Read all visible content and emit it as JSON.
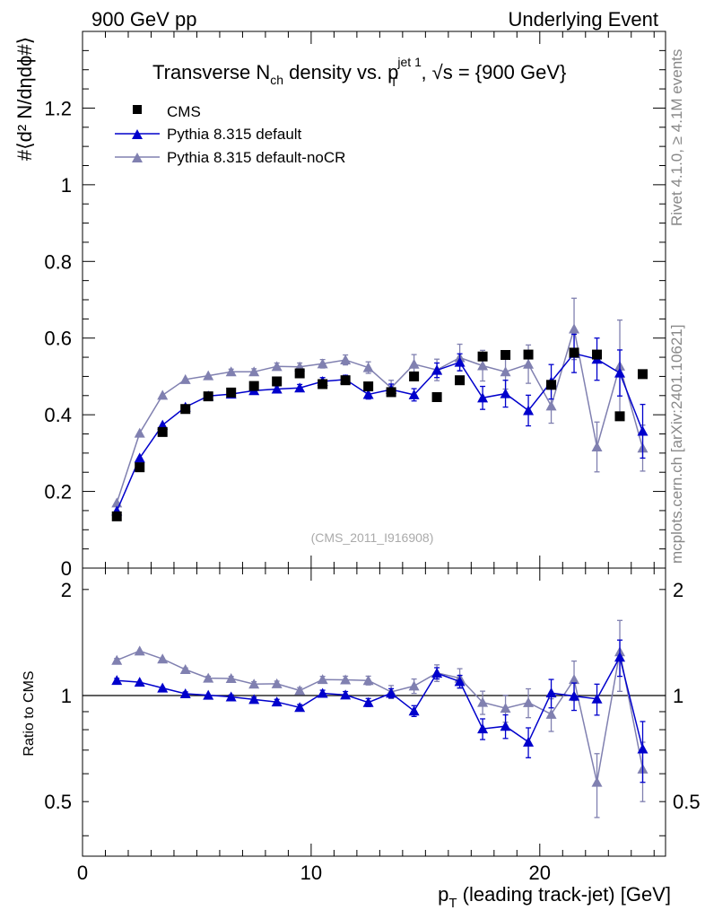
{
  "header": {
    "left": "900 GeV pp",
    "right": "Underlying Event"
  },
  "side_text": {
    "rivet": "Rivet 4.1.0, ≥ 4.1M events",
    "mcplots": "mcplots.cern.ch [arXiv:2401.10621]"
  },
  "watermark": "(CMS_2011_I916908)",
  "colors": {
    "cms": "#000000",
    "default": "#0000cc",
    "nocr": "#8080b0"
  },
  "chart_data": {
    "type": "scatter",
    "title_parts": {
      "t1": "Transverse N",
      "t1_sub": "ch",
      "t2": " density vs. p",
      "t2_sup": "jet 1",
      "t2_sub": "T",
      "t3": ", √s = {900 GeV}"
    },
    "ylabel": "#⟨d² N/dηdϕ#⟩",
    "ratio_ylabel": "Ratio to CMS",
    "xlabel": "p",
    "xlabel_sub": "T",
    "xlabel_rest": " (leading track-jet) [GeV]",
    "xlim": [
      0,
      25.5
    ],
    "ylim": [
      0,
      1.4
    ],
    "ratio_ylim": [
      0.35,
      2.3
    ],
    "x_ticks": [
      "0",
      "10",
      "20"
    ],
    "y_ticks": [
      "0",
      "0.2",
      "0.4",
      "0.6",
      "0.8",
      "1",
      "1.2"
    ],
    "ratio_ticks": [
      "0.5",
      "1",
      "2"
    ],
    "legend": [
      "CMS",
      "Pythia 8.315 default",
      "Pythia 8.315 default-noCR"
    ],
    "x": [
      1.5,
      2.5,
      3.5,
      4.5,
      5.5,
      6.5,
      7.5,
      8.5,
      9.5,
      10.5,
      11.5,
      12.5,
      13.5,
      14.5,
      15.5,
      16.5,
      17.5,
      18.5,
      19.5,
      20.5,
      21.5,
      22.5,
      23.5,
      24.5
    ],
    "series": [
      {
        "name": "CMS",
        "values": [
          0.135,
          0.263,
          0.355,
          0.415,
          0.448,
          0.458,
          0.475,
          0.487,
          0.508,
          0.48,
          0.49,
          0.474,
          0.459,
          0.5,
          0.446,
          0.49,
          0.552,
          0.556,
          0.557,
          0.478,
          0.562,
          0.557,
          0.396,
          0.506
        ],
        "errors": [
          0.004,
          0.005,
          0.005,
          0.005,
          0.005,
          0.005,
          0.006,
          0.006,
          0.006,
          0.006,
          0.007,
          0.007,
          0.007,
          0.008,
          0.008,
          0.009,
          0.01,
          0.01,
          0.011,
          0.012,
          0.013,
          0.013,
          0.012,
          0.014
        ]
      },
      {
        "name": "Pythia 8.315 default",
        "values": [
          0.149,
          0.287,
          0.373,
          0.42,
          0.449,
          0.454,
          0.463,
          0.467,
          0.47,
          0.487,
          0.492,
          0.453,
          0.466,
          0.452,
          0.516,
          0.537,
          0.444,
          0.455,
          0.411,
          0.486,
          0.56,
          0.545,
          0.509,
          0.357
        ],
        "errors": [
          0.002,
          0.003,
          0.004,
          0.005,
          0.005,
          0.006,
          0.007,
          0.008,
          0.009,
          0.01,
          0.011,
          0.012,
          0.014,
          0.016,
          0.019,
          0.022,
          0.03,
          0.035,
          0.04,
          0.045,
          0.05,
          0.055,
          0.06,
          0.07
        ]
      },
      {
        "name": "Pythia 8.315 default-noCR",
        "values": [
          0.17,
          0.352,
          0.451,
          0.492,
          0.502,
          0.512,
          0.512,
          0.526,
          0.525,
          0.533,
          0.543,
          0.523,
          0.47,
          0.532,
          0.517,
          0.549,
          0.528,
          0.512,
          0.532,
          0.423,
          0.624,
          0.316,
          0.527,
          0.313
        ],
        "errors": [
          0.002,
          0.003,
          0.004,
          0.005,
          0.006,
          0.007,
          0.008,
          0.009,
          0.01,
          0.011,
          0.013,
          0.015,
          0.02,
          0.025,
          0.028,
          0.035,
          0.04,
          0.045,
          0.05,
          0.045,
          0.08,
          0.065,
          0.12,
          0.06
        ]
      }
    ]
  }
}
